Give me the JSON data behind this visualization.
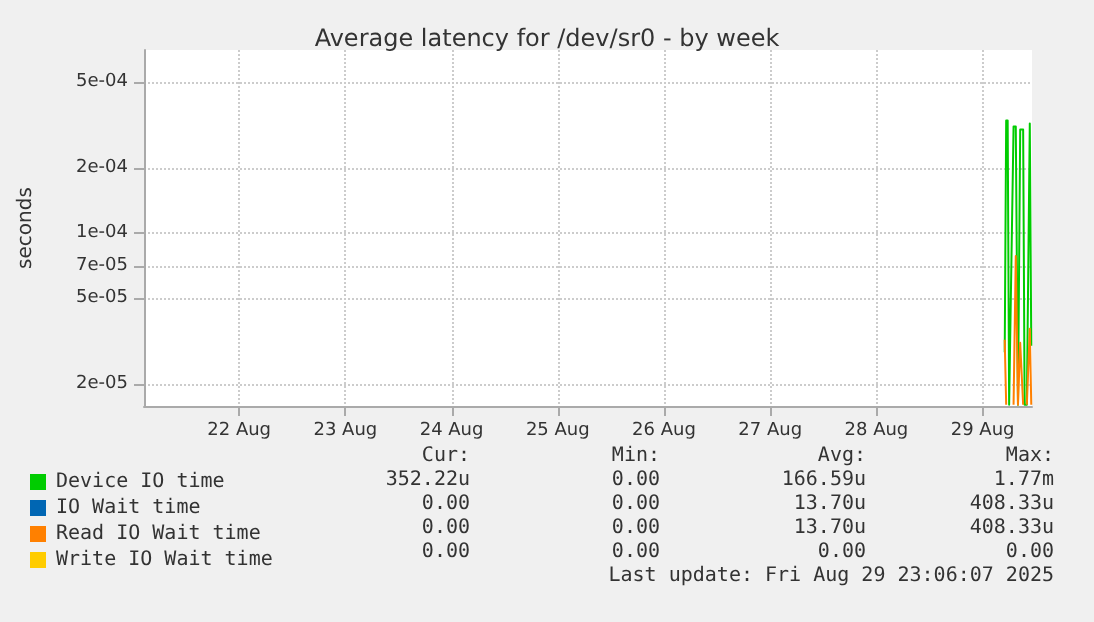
{
  "chart_data": {
    "type": "line",
    "title": "Average latency for /dev/sr0 - by week",
    "ylabel": "seconds",
    "log": "y",
    "ylim": [
      1.58e-05,
      0.0007
    ],
    "yticks": [
      {
        "value": 2e-05,
        "label": "2e-05"
      },
      {
        "value": 5e-05,
        "label": "5e-05"
      },
      {
        "value": 7e-05,
        "label": "7e-05"
      },
      {
        "value": 0.0001,
        "label": "1e-04"
      },
      {
        "value": 0.0002,
        "label": "2e-04"
      },
      {
        "value": 0.0005,
        "label": "5e-04"
      }
    ],
    "xlim": [
      "2025-08-21T14:30",
      "2025-08-29T23:10"
    ],
    "xticks": [
      {
        "value": "2025-08-22T12:00",
        "label": "22 Aug"
      },
      {
        "value": "2025-08-23T12:00",
        "label": "23 Aug"
      },
      {
        "value": "2025-08-24T12:00",
        "label": "24 Aug"
      },
      {
        "value": "2025-08-25T12:00",
        "label": "25 Aug"
      },
      {
        "value": "2025-08-26T12:00",
        "label": "26 Aug"
      },
      {
        "value": "2025-08-27T12:00",
        "label": "27 Aug"
      },
      {
        "value": "2025-08-28T12:00",
        "label": "28 Aug"
      },
      {
        "value": "2025-08-29T12:00",
        "label": "29 Aug"
      }
    ],
    "x": [
      "2025-08-29T17:00",
      "2025-08-29T17:20",
      "2025-08-29T17:40",
      "2025-08-29T18:00",
      "2025-08-29T19:00",
      "2025-08-29T19:30",
      "2025-08-29T20:00",
      "2025-08-29T20:30",
      "2025-08-29T21:10",
      "2025-08-29T21:30",
      "2025-08-29T22:00",
      "2025-08-29T22:40",
      "2025-08-29T23:00"
    ],
    "series": [
      {
        "name": "Device IO time",
        "color": "#00cc00",
        "values": [
          2.8e-05,
          0.00033,
          0.00033,
          1.6e-05,
          0.00031,
          0.00031,
          1.6e-05,
          0.0003,
          0.0003,
          1.6e-05,
          1.6e-05,
          0.00032,
          3e-05
        ]
      },
      {
        "name": "IO Wait time",
        "color": "#0066b3",
        "values": [
          null,
          null,
          null,
          null,
          null,
          null,
          null,
          null,
          null,
          null,
          null,
          null,
          null
        ]
      },
      {
        "name": "Read IO Wait time",
        "color": "#ff8000",
        "values": [
          3.2e-05,
          1.6e-05,
          null,
          null,
          1.6e-05,
          7.8e-05,
          1.6e-05,
          3.1e-05,
          1.6e-05,
          null,
          1.6e-05,
          3.6e-05,
          1.6e-05
        ]
      },
      {
        "name": "Write IO Wait time",
        "color": "#ffcc00",
        "values": [
          null,
          null,
          null,
          null,
          null,
          null,
          null,
          null,
          null,
          null,
          null,
          null,
          null
        ]
      }
    ],
    "grid": true,
    "legend": "bottom",
    "marker": "none",
    "line_style": "solid",
    "annotations": [
      "Cur:",
      "Min:",
      "Avg:",
      "Max:",
      "352.22u",
      "0.00",
      "166.59u",
      "1.77m",
      "0.00",
      "0.00",
      "13.70u",
      "408.33u",
      "0.00",
      "0.00",
      "13.70u",
      "408.33u",
      "0.00",
      "0.00",
      "0.00",
      "0.00",
      "Last update: Fri Aug 29 23:06:07 2025"
    ]
  }
}
